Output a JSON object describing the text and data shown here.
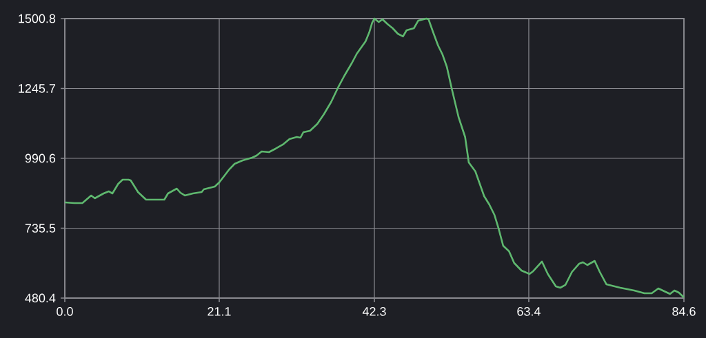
{
  "chart_data": {
    "type": "line",
    "color": "#5fb86f",
    "grid": true,
    "marker": "none",
    "line_style": "solid",
    "xlim": [
      0,
      84.6
    ],
    "ylim": [
      480.4,
      1500.8
    ],
    "xticks": [
      {
        "value": 0,
        "label": "0.0"
      },
      21.1,
      42.3,
      63.4,
      84.6
    ],
    "yticks": [
      480.4,
      735.5,
      990.6,
      1245.7,
      1500.8
    ],
    "x": [
      0.0,
      1.3,
      2.4,
      3.6,
      4.1,
      5.3,
      6.0,
      6.5,
      7.3,
      7.9,
      8.7,
      9.0,
      10.0,
      11.1,
      12.1,
      13.6,
      14.1,
      15.3,
      15.8,
      16.4,
      17.5,
      18.7,
      19.0,
      20.5,
      21.1,
      21.9,
      22.4,
      23.2,
      24.3,
      25.6,
      26.2,
      26.9,
      27.9,
      28.8,
      29.8,
      30.7,
      31.7,
      32.2,
      32.6,
      33.5,
      34.5,
      35.4,
      36.4,
      37.3,
      38.2,
      39.2,
      39.9,
      41.1,
      41.6,
      42.0,
      42.3,
      42.9,
      43.4,
      44.1,
      44.8,
      45.5,
      46.2,
      46.7,
      47.7,
      48.3,
      49.4,
      49.7,
      50.3,
      51.0,
      51.6,
      52.2,
      52.9,
      53.8,
      54.7,
      55.2,
      56.1,
      56.6,
      57.3,
      58.0,
      58.7,
      59.3,
      59.9,
      60.7,
      61.4,
      62.4,
      63.5,
      64.0,
      65.2,
      66.0,
      67.1,
      67.7,
      68.4,
      69.3,
      70.3,
      70.8,
      71.4,
      72.4,
      73.1,
      74.0,
      75.9,
      77.8,
      79.2,
      80.2,
      81.1,
      81.7,
      82.7,
      83.3,
      83.9,
      84.6
    ],
    "values": [
      829.7,
      827.2,
      827.2,
      854.9,
      844.8,
      862.4,
      870.0,
      862.4,
      897.6,
      912.7,
      912.7,
      910.2,
      867.4,
      839.8,
      839.8,
      839.8,
      862.4,
      880.0,
      864.9,
      854.9,
      862.4,
      867.4,
      877.5,
      887.6,
      902.6,
      930.3,
      947.9,
      970.5,
      983.1,
      993.1,
      1000.7,
      1015.7,
      1013.2,
      1025.8,
      1040.9,
      1061.0,
      1068.5,
      1066.0,
      1086.1,
      1091.1,
      1116.3,
      1151.5,
      1196.7,
      1247.0,
      1292.2,
      1337.4,
      1372.6,
      1417.9,
      1450.5,
      1485.7,
      1500.8,
      1488.2,
      1498.3,
      1480.7,
      1465.6,
      1445.5,
      1435.5,
      1458.1,
      1465.6,
      1493.3,
      1500.8,
      1498.3,
      1453.0,
      1402.8,
      1370.1,
      1324.9,
      1241.9,
      1141.4,
      1068.5,
      975.5,
      942.8,
      905.1,
      852.4,
      822.2,
      784.5,
      731.7,
      671.4,
      651.3,
      608.6,
      580.9,
      568.4,
      578.4,
      613.6,
      568.4,
      523.1,
      518.1,
      528.2,
      575.9,
      606.1,
      611.1,
      601.0,
      616.1,
      575.9,
      530.7,
      518.1,
      508.0,
      498.0,
      498.0,
      515.6,
      508.0,
      495.5,
      508.0,
      500.5,
      482.9
    ]
  }
}
